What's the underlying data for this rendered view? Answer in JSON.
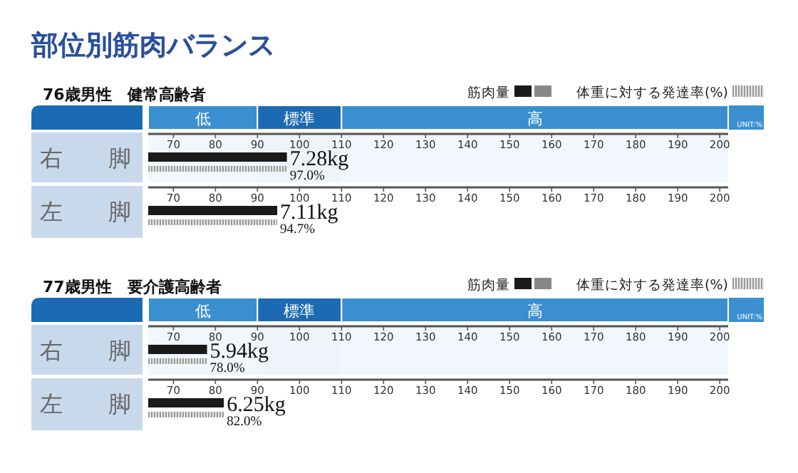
{
  "chart_data": [
    {
      "type": "bar",
      "orientation": "horizontal",
      "title": "部位別筋肉バランス",
      "subtitle": "76歳男性　健常高齢者",
      "categories": [
        "右脚"
      ],
      "xlim": [
        64,
        202
      ],
      "xticks": [
        70,
        80,
        90,
        100,
        110,
        120,
        130,
        140,
        150,
        160,
        170,
        180,
        190,
        200
      ],
      "legend": "top right",
      "series": [
        {
          "name": "筋肉量",
          "color": "#1a1a1a",
          "values": [
            97.0
          ]
        },
        {
          "name": "体重に対する発達率(%)",
          "color": "#9a9a9a",
          "values": [
            97.0
          ],
          "value_labels": [
            "97.0%"
          ]
        }
      ],
      "bands": [
        {
          "axis": "x",
          "from": 64,
          "to": 90,
          "label": "低",
          "color": "#3a8fd0"
        },
        {
          "axis": "x",
          "from": 90,
          "to": 110,
          "label": "標準",
          "color": "#1c6ab3"
        },
        {
          "axis": "x",
          "from": 110,
          "to": 202,
          "label": "高",
          "color": "#3a8fd0"
        }
      ],
      "annotations": [
        "UNIT:%",
        "7.28kg"
      ]
    },
    {
      "type": "bar",
      "orientation": "horizontal",
      "categories": [
        "左脚"
      ],
      "xlim": [
        64,
        202
      ],
      "xticks": [
        70,
        80,
        90,
        100,
        110,
        120,
        130,
        140,
        150,
        160,
        170,
        180,
        190,
        200
      ],
      "series": [
        {
          "color": "#1a1a1a",
          "values": [
            94.7
          ]
        },
        {
          "color": "#9a9a9a",
          "values": [
            94.7
          ],
          "value_labels": [
            "94.7%"
          ]
        }
      ],
      "annotations": [
        "7.11kg"
      ]
    },
    {
      "type": "bar",
      "orientation": "horizontal",
      "subtitle": "77歳男性　要介護高齢者",
      "categories": [
        "右脚"
      ],
      "xlim": [
        64,
        202
      ],
      "xticks": [
        70,
        80,
        90,
        100,
        110,
        120,
        130,
        140,
        150,
        160,
        170,
        180,
        190,
        200
      ],
      "legend": "top right",
      "series": [
        {
          "name": "筋肉量",
          "color": "#1a1a1a",
          "values": [
            78.0
          ]
        },
        {
          "name": "体重に対する発達率(%)",
          "color": "#9a9a9a",
          "values": [
            78.0
          ],
          "value_labels": [
            "78.0%"
          ]
        }
      ],
      "bands": [
        {
          "axis": "x",
          "from": 64,
          "to": 90,
          "label": "低",
          "color": "#3a8fd0"
        },
        {
          "axis": "x",
          "from": 90,
          "to": 110,
          "label": "標準",
          "color": "#1c6ab3"
        },
        {
          "axis": "x",
          "from": 110,
          "to": 202,
          "label": "高",
          "color": "#3a8fd0"
        }
      ],
      "annotations": [
        "UNIT:%",
        "5.94kg"
      ]
    },
    {
      "type": "bar",
      "orientation": "horizontal",
      "categories": [
        "左脚"
      ],
      "xlim": [
        64,
        202
      ],
      "xticks": [
        70,
        80,
        90,
        100,
        110,
        120,
        130,
        140,
        150,
        160,
        170,
        180,
        190,
        200
      ],
      "series": [
        {
          "color": "#1a1a1a",
          "values": [
            82.0
          ]
        },
        {
          "color": "#9a9a9a",
          "values": [
            82.0
          ],
          "value_labels": [
            "82.0%"
          ]
        }
      ],
      "annotations": [
        "6.25kg"
      ]
    }
  ]
}
